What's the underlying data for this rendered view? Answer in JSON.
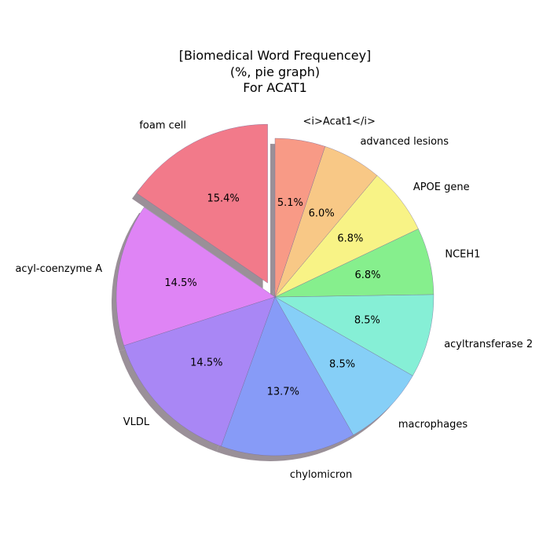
{
  "chart_data": {
    "type": "pie",
    "title": [
      "[Biomedical Word Frequencey]",
      "(%, pie graph)",
      "For ACAT1"
    ],
    "start_angle_deg": 90,
    "direction": "counterclockwise",
    "shadow": true,
    "slices": [
      {
        "label": "foam cell",
        "value": 15.4,
        "pct_label": "15.4%",
        "color": "#f27a8a",
        "explode": true
      },
      {
        "label": "acyl-coenzyme A",
        "value": 14.5,
        "pct_label": "14.5%",
        "color": "#df84f5",
        "explode": false
      },
      {
        "label": "VLDL",
        "value": 14.5,
        "pct_label": "14.5%",
        "color": "#a987f5",
        "explode": false
      },
      {
        "label": "chylomicron",
        "value": 13.7,
        "pct_label": "13.7%",
        "color": "#879bf7",
        "explode": false
      },
      {
        "label": "macrophages",
        "value": 8.5,
        "pct_label": "8.5%",
        "color": "#86cff7",
        "explode": false
      },
      {
        "label": "acyltransferase 2",
        "value": 8.5,
        "pct_label": "8.5%",
        "color": "#86efd6",
        "explode": false
      },
      {
        "label": "NCEH1",
        "value": 6.8,
        "pct_label": "6.8%",
        "color": "#86ef8d",
        "explode": false
      },
      {
        "label": "APOE gene",
        "value": 6.8,
        "pct_label": "6.8%",
        "color": "#f8f386",
        "explode": false
      },
      {
        "label": "advanced lesions",
        "value": 6.0,
        "pct_label": "6.0%",
        "color": "#f8c886",
        "explode": false
      },
      {
        "label": "<i>Acat1</i>",
        "value": 5.1,
        "pct_label": "5.1%",
        "color": "#f89a86",
        "explode": false
      }
    ]
  }
}
